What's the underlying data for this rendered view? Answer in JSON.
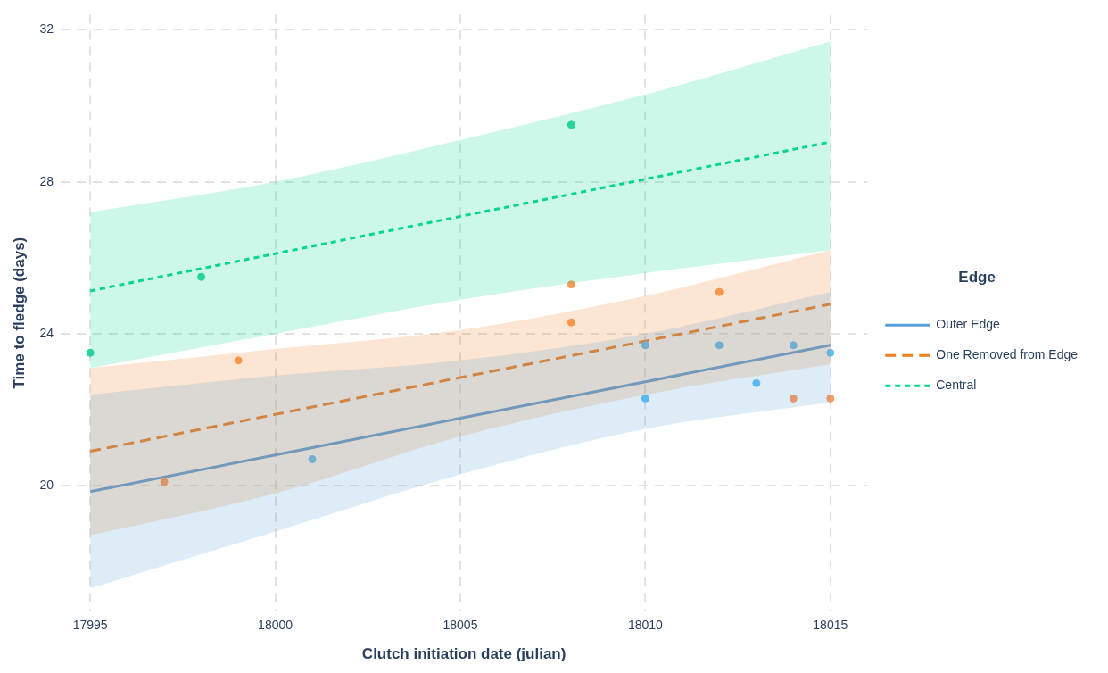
{
  "chart_data": {
    "type": "line",
    "xlabel": "Clutch initiation date (julian)",
    "ylabel": "Time to fledge (days)",
    "legend_title": "Edge",
    "xlim": [
      17994.2,
      18016.0
    ],
    "ylim": [
      16.7,
      32.4
    ],
    "xticks": [
      17995,
      18000,
      18005,
      18010,
      18015
    ],
    "yticks": [
      20,
      24,
      28,
      32
    ],
    "grid": true,
    "legend": "right",
    "series": [
      {
        "type": "scatter",
        "marker": "circle",
        "color": "#5bc0f8",
        "x": [
          18001,
          18010,
          18010,
          18012,
          18013,
          18014,
          18015
        ],
        "values": [
          20.7,
          23.7,
          22.3,
          23.7,
          22.7,
          23.7,
          23.5
        ]
      },
      {
        "type": "scatter",
        "marker": "circle",
        "color": "#ff9a55",
        "x": [
          17997,
          17999,
          18008,
          18008,
          18012,
          18014,
          18015
        ],
        "values": [
          20.1,
          23.3,
          25.3,
          24.3,
          25.1,
          22.3,
          22.3
        ]
      },
      {
        "type": "scatter",
        "marker": "circle",
        "color": "#2dd4a0",
        "x": [
          17995,
          17998,
          18008
        ],
        "values": [
          23.5,
          25.5,
          29.5
        ]
      },
      {
        "type": "line",
        "name": "Outer Edge",
        "color": "#5b9fd8",
        "line_style": "solid",
        "marker": "none",
        "x": [
          17995,
          18000,
          18005,
          18010,
          18015
        ],
        "values": [
          19.85,
          20.81,
          21.78,
          22.74,
          23.7
        ],
        "lower": [
          17.3,
          18.8,
          20.3,
          21.5,
          22.2
        ],
        "upper": [
          22.4,
          22.9,
          23.3,
          24.0,
          25.1
        ]
      },
      {
        "type": "line",
        "name": "One Removed from Edge",
        "color": "#f07f1f",
        "line_style": "dashed",
        "marker": "none",
        "x": [
          17995,
          18000,
          18005,
          18010,
          18015
        ],
        "values": [
          20.91,
          21.88,
          22.85,
          23.81,
          24.78
        ],
        "lower": [
          18.7,
          19.8,
          21.3,
          22.4,
          23.2
        ],
        "upper": [
          23.1,
          23.6,
          24.1,
          25.0,
          26.2
        ]
      },
      {
        "type": "line",
        "name": "Central",
        "color": "#00d68f",
        "line_style": "dotted",
        "marker": "none",
        "x": [
          17995,
          18000,
          18005,
          18010,
          18015
        ],
        "values": [
          25.13,
          26.11,
          27.09,
          28.07,
          29.05
        ],
        "lower": [
          23.1,
          24.0,
          24.9,
          25.6,
          26.2
        ],
        "upper": [
          27.2,
          28.0,
          29.1,
          30.3,
          31.7
        ]
      }
    ]
  }
}
